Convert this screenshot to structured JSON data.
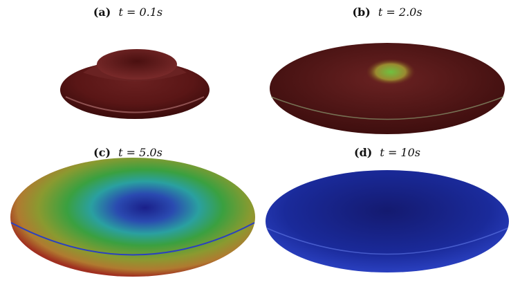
{
  "panels": [
    {
      "label": "(a)",
      "time": "t = 0.1s"
    },
    {
      "label": "(b)",
      "time": "t = 2.0s"
    },
    {
      "label": "(c)",
      "time": "t = 5.0s"
    },
    {
      "label": "(d)",
      "time": "t = 10s"
    }
  ]
}
